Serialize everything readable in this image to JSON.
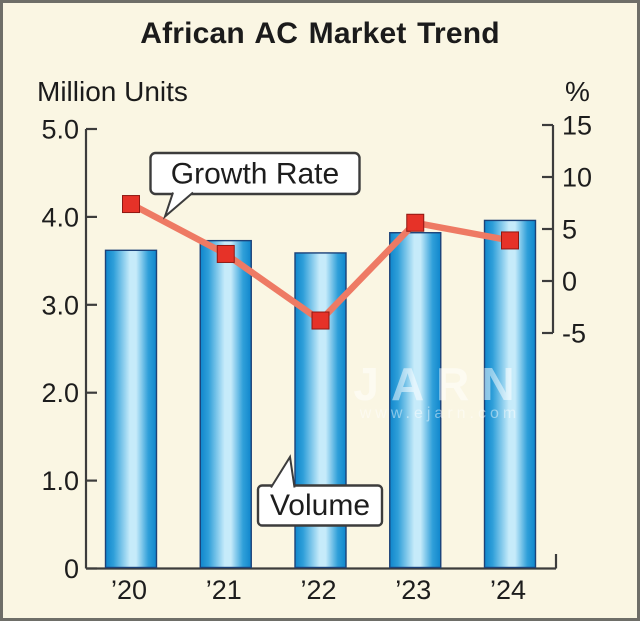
{
  "title": "African AC Market Trend",
  "left_axis": {
    "label": "Million Units",
    "ticks": [
      {
        "label": "5.0",
        "value": 5.0
      },
      {
        "label": "4.0",
        "value": 4.0
      },
      {
        "label": "3.0",
        "value": 3.0
      },
      {
        "label": "2.0",
        "value": 2.0
      },
      {
        "label": "1.0",
        "value": 1.0
      },
      {
        "label": "0",
        "value": 0
      }
    ]
  },
  "right_axis": {
    "label": "%",
    "ticks": [
      {
        "label": "15",
        "value": 15
      },
      {
        "label": "10",
        "value": 10
      },
      {
        "label": "5",
        "value": 5
      },
      {
        "label": "0",
        "value": 0
      },
      {
        "label": "-5",
        "value": -5
      }
    ]
  },
  "callouts": {
    "growth_rate": "Growth Rate",
    "volume": "Volume"
  },
  "watermark": {
    "line1": "JARN",
    "line2": "www.ejarn.com"
  },
  "chart_data": {
    "type": "bar",
    "subtype": "combo bar + line, dual axis",
    "title": "African AC Market Trend",
    "categories": [
      "’20",
      "’21",
      "’22",
      "’23",
      "’24"
    ],
    "series": [
      {
        "name": "Volume",
        "type": "bar",
        "axis": "left",
        "unit": "Million Units",
        "values": [
          3.62,
          3.73,
          3.59,
          3.82,
          3.96
        ]
      },
      {
        "name": "Growth Rate",
        "type": "line",
        "axis": "right",
        "unit": "%",
        "values": [
          7.4,
          2.6,
          -3.8,
          5.6,
          3.9
        ]
      }
    ],
    "left_ylabel": "Million Units",
    "right_ylabel": "%",
    "left_ylim": [
      0,
      5.0
    ],
    "right_ylim": [
      -5,
      15
    ],
    "grid": false,
    "legend": "in-chart callout labels",
    "colors": {
      "background": "#faf6e3",
      "bar_fill_edge": "#0f86cc",
      "bar_fill_mid": "#2f9fd9",
      "bar_fill_light": "#c6ebfa",
      "bar_outline": "#1c4279",
      "line": "#ee7a64",
      "marker": "#e63228",
      "marker_border": "#8f1812",
      "axis": "#3c3c3c"
    }
  }
}
